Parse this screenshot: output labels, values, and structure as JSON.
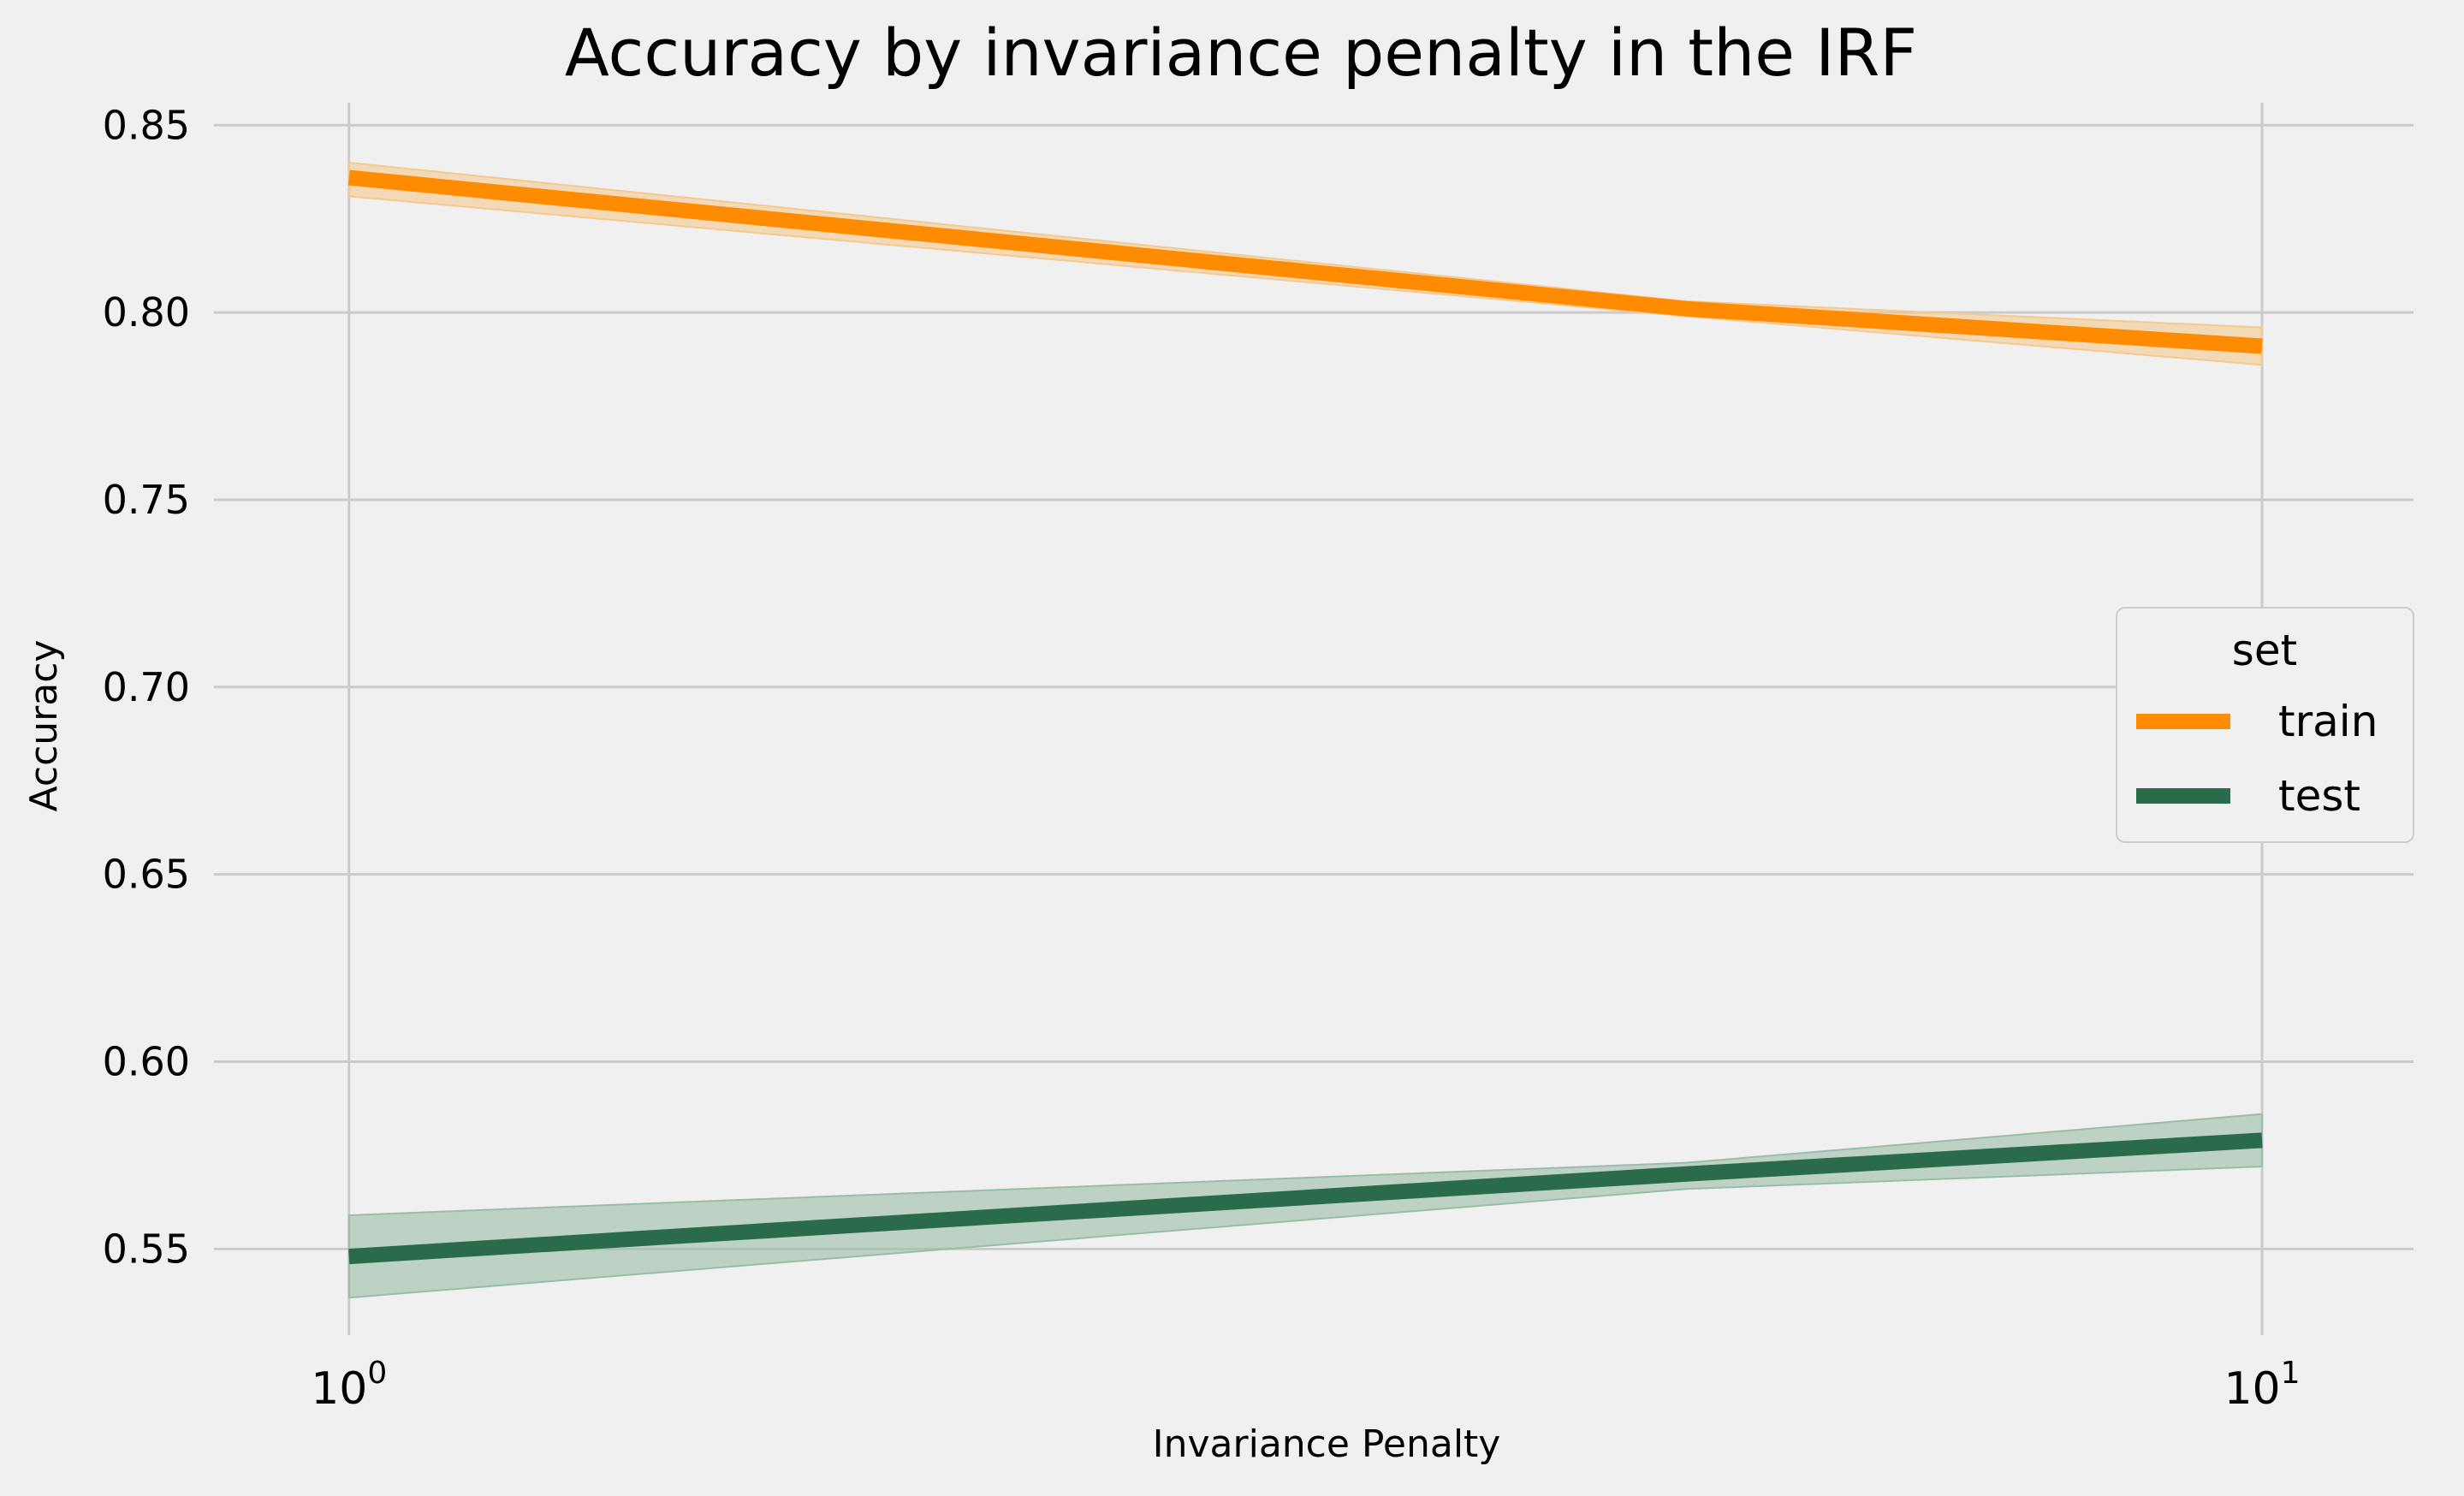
{
  "chart_data": {
    "type": "line",
    "title": "Accuracy by invariance penalty in the IRF",
    "xlabel": "Invariance Penalty",
    "ylabel": "Accuracy",
    "x_scale": "log",
    "xlim": [
      0.85,
      12.0
    ],
    "ylim": [
      0.527,
      0.856
    ],
    "x_ticks": [
      {
        "value": 1,
        "base": "10",
        "exp": "0"
      },
      {
        "value": 10,
        "base": "10",
        "exp": "1"
      }
    ],
    "y_ticks": [
      0.55,
      0.6,
      0.65,
      0.7,
      0.75,
      0.8,
      0.85
    ],
    "y_tick_labels": [
      "0.55",
      "0.60",
      "0.65",
      "0.70",
      "0.75",
      "0.80",
      "0.85"
    ],
    "grid": true,
    "legend": {
      "title": "set",
      "position": "center-right"
    },
    "x": [
      1,
      5,
      10
    ],
    "series": [
      {
        "name": "train",
        "color": "#ff8c00",
        "band_color": "#f5c990",
        "values": [
          0.836,
          0.801,
          0.791
        ],
        "lower": [
          0.831,
          0.799,
          0.786
        ],
        "upper": [
          0.84,
          0.803,
          0.796
        ]
      },
      {
        "name": "test",
        "color": "#2a6b4c",
        "band_color": "#9bbca9",
        "values": [
          0.548,
          0.57,
          0.579
        ],
        "lower": [
          0.537,
          0.566,
          0.572
        ],
        "upper": [
          0.559,
          0.573,
          0.586
        ]
      }
    ]
  }
}
